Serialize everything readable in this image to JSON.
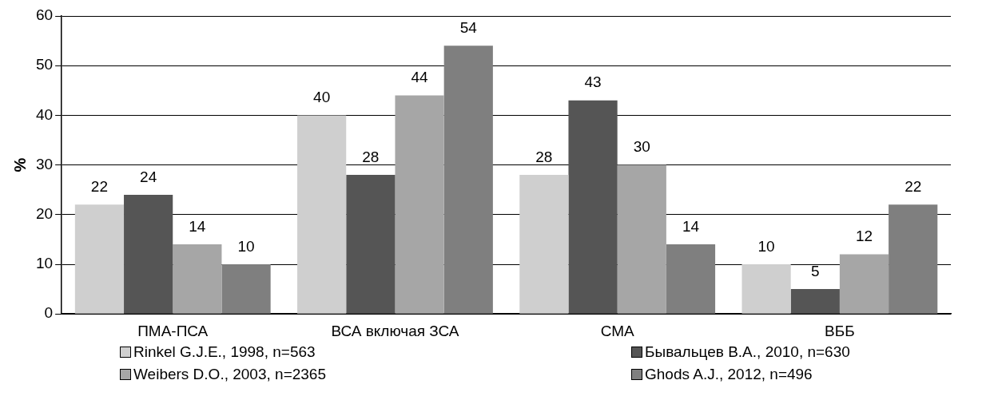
{
  "chart_data": {
    "type": "bar",
    "ylabel": "%",
    "categories": [
      "ПМА-ПСА",
      "ВСА включая ЗСА",
      "СМА",
      "ВББ"
    ],
    "series": [
      {
        "name": "Rinkel G.J.E., 1998, n=563",
        "color": "#cfcfcf",
        "values": [
          22,
          40,
          28,
          10
        ]
      },
      {
        "name": "Бывальцев В.А., 2010, n=630",
        "color": "#555555",
        "values": [
          24,
          28,
          43,
          5
        ]
      },
      {
        "name": "Weibers D.O., 2003, n=2365",
        "color": "#a6a6a6",
        "values": [
          14,
          44,
          30,
          12
        ]
      },
      {
        "name": "Ghods A.J., 2012, n=496",
        "color": "#7f7f7f",
        "values": [
          10,
          54,
          14,
          22
        ]
      }
    ],
    "ylim": [
      0,
      60
    ],
    "yticks": [
      0,
      10,
      20,
      30,
      40,
      50,
      60
    ],
    "grid": "y",
    "legend": "bottom",
    "data_labels": true
  }
}
